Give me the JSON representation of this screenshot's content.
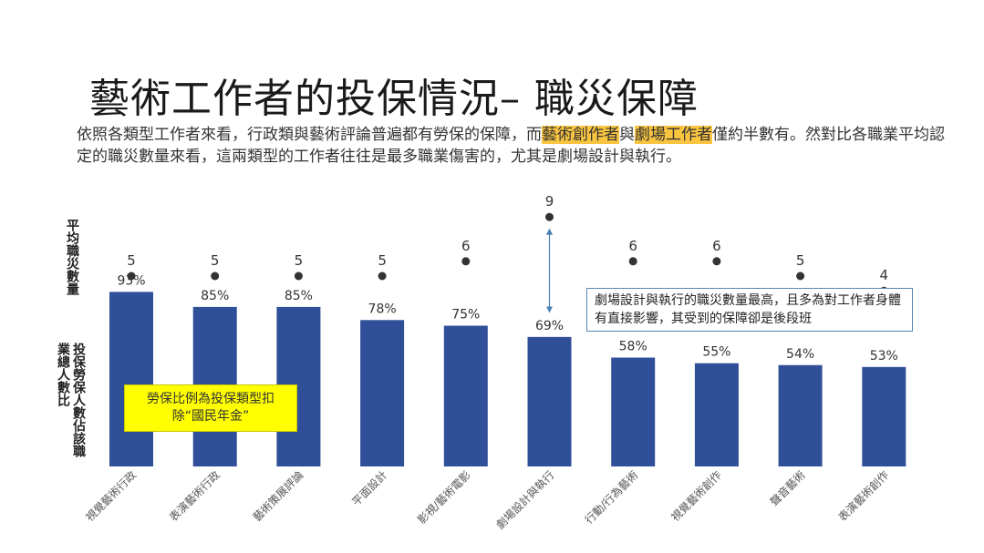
{
  "slide": {
    "title": "藝術工作者的投保情況– 職災保障",
    "body_pre": "依照各類型工作者來看，行政類與藝術評論普遍都有勞保的保障，而",
    "body_hl1": "藝術創作者",
    "body_mid": "與",
    "body_hl2": "劇場工作者",
    "body_post": "僅約半數有。然對比各職業平均認定的職災數量來看，這兩類型的工作者往往是最多職業傷害的，尤其是劇場設計與執行。",
    "ylabel_top": "平均職災數量",
    "ylabel_bottom": "投保勞保人數佔該職業總人數比",
    "yellow_note": "勞保比例為投保類型扣除“國民年金”",
    "callout": "劇場設計與執行的職災數量最高，且多為對工作者身體有直接影響，其受到的保障卻是後段班"
  },
  "chart_data": {
    "type": "bar",
    "categories": [
      "視覺藝術行政",
      "表演藝術行政",
      "藝術策展評論",
      "平面設計",
      "影視/藝術電影",
      "劇場設計與執行",
      "行動/行為藝術",
      "視覺藝術創作",
      "聲音藝術",
      "表演藝術創作"
    ],
    "series": [
      {
        "type": "bar",
        "values": [
          93,
          85,
          85,
          78,
          75,
          69,
          58,
          55,
          54,
          53
        ],
        "labels": [
          "93%",
          "85%",
          "85%",
          "78%",
          "75%",
          "69%",
          "58%",
          "55%",
          "54%",
          "53%"
        ],
        "color": "#2f4f99"
      },
      {
        "type": "scatter",
        "values": [
          5,
          5,
          5,
          5,
          6,
          9,
          6,
          6,
          5,
          4
        ],
        "color": "#333333"
      }
    ],
    "bar_ylim": [
      0,
      100
    ],
    "dot_ylim": [
      0,
      10
    ],
    "grid": false,
    "colors": {
      "bar": "#2f4f99",
      "dot": "#333333",
      "arrow": "#4a7fb5",
      "highlight": "#f9c440",
      "note_bg": "#ffff00"
    }
  }
}
